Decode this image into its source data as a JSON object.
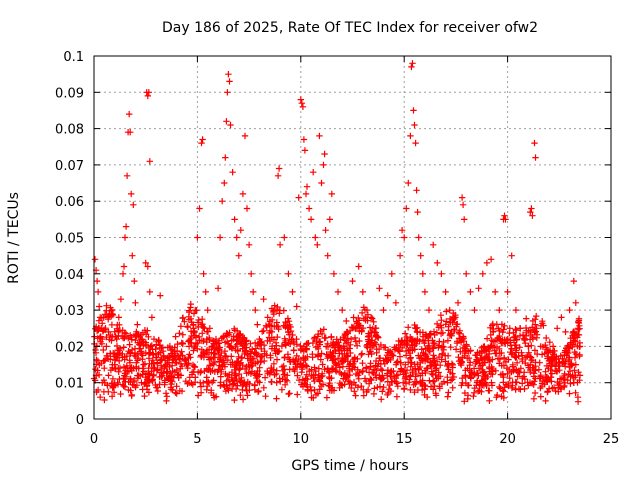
{
  "chart_data": {
    "type": "scatter",
    "title": "Day 186 of 2025, Rate Of TEC Index for receiver ofw2",
    "xlabel": "GPS time / hours",
    "ylabel": "ROTI / TECUs",
    "xlim": [
      0,
      25
    ],
    "ylim": [
      0,
      0.1
    ],
    "x_ticks": [
      "0",
      "5",
      "10",
      "15",
      "20",
      "25"
    ],
    "y_ticks": [
      "0",
      "0.01",
      "0.02",
      "0.03",
      "0.04",
      "0.05",
      "0.06",
      "0.07",
      "0.08",
      "0.09",
      "0.1"
    ],
    "grid": true,
    "marker": "plus",
    "series_color": "#ff0000",
    "series": [
      {
        "points": [
          [
            0.05,
            0.044
          ],
          [
            0.1,
            0.041
          ],
          [
            0.15,
            0.038
          ],
          [
            0.2,
            0.035
          ],
          [
            0.25,
            0.031
          ],
          [
            0.3,
            0.028
          ],
          [
            0.35,
            0.025
          ],
          [
            0.4,
            0.022
          ],
          [
            0.45,
            0.019
          ],
          [
            0.5,
            0.016
          ],
          [
            0.1,
            0.012
          ],
          [
            0.2,
            0.008
          ],
          [
            0.3,
            0.006
          ],
          [
            0.4,
            0.01
          ],
          [
            0.5,
            0.014
          ],
          [
            0.6,
            0.02
          ],
          [
            0.7,
            0.024
          ],
          [
            0.8,
            0.018
          ],
          [
            0.7,
            0.012
          ],
          [
            0.9,
            0.009
          ],
          [
            1.0,
            0.015
          ],
          [
            1.1,
            0.022
          ],
          [
            1.2,
            0.028
          ],
          [
            1.3,
            0.033
          ],
          [
            1.4,
            0.04
          ],
          [
            1.45,
            0.042
          ],
          [
            1.5,
            0.05
          ],
          [
            1.55,
            0.053
          ],
          [
            1.6,
            0.067
          ],
          [
            1.65,
            0.079
          ],
          [
            1.7,
            0.084
          ],
          [
            1.75,
            0.079
          ],
          [
            1.8,
            0.062
          ],
          [
            1.9,
            0.059
          ],
          [
            1.85,
            0.045
          ],
          [
            1.95,
            0.038
          ],
          [
            2.0,
            0.032
          ],
          [
            2.1,
            0.026
          ],
          [
            2.2,
            0.021
          ],
          [
            2.3,
            0.018
          ],
          [
            2.4,
            0.015
          ],
          [
            2.5,
            0.043
          ],
          [
            2.55,
            0.09
          ],
          [
            2.6,
            0.089
          ],
          [
            2.65,
            0.09
          ],
          [
            2.7,
            0.071
          ],
          [
            2.6,
            0.042
          ],
          [
            2.7,
            0.035
          ],
          [
            2.8,
            0.028
          ],
          [
            2.9,
            0.022
          ],
          [
            3.0,
            0.018
          ],
          [
            3.2,
            0.034
          ],
          [
            3.4,
            0.014
          ],
          [
            3.6,
            0.011
          ],
          [
            3.8,
            0.008
          ],
          [
            3.5,
            0.005
          ],
          [
            4.0,
            0.007
          ],
          [
            4.2,
            0.012
          ],
          [
            4.4,
            0.016
          ],
          [
            4.6,
            0.02
          ],
          [
            4.8,
            0.026
          ],
          [
            4.9,
            0.03
          ],
          [
            5.0,
            0.05
          ],
          [
            5.1,
            0.058
          ],
          [
            5.2,
            0.076
          ],
          [
            5.25,
            0.077
          ],
          [
            5.3,
            0.04
          ],
          [
            5.4,
            0.035
          ],
          [
            5.5,
            0.03
          ],
          [
            5.6,
            0.025
          ],
          [
            5.7,
            0.02
          ],
          [
            5.8,
            0.018
          ],
          [
            5.9,
            0.022
          ],
          [
            6.0,
            0.036
          ],
          [
            6.1,
            0.05
          ],
          [
            6.2,
            0.06
          ],
          [
            6.3,
            0.065
          ],
          [
            6.35,
            0.072
          ],
          [
            6.4,
            0.082
          ],
          [
            6.45,
            0.09
          ],
          [
            6.5,
            0.095
          ],
          [
            6.55,
            0.093
          ],
          [
            6.6,
            0.081
          ],
          [
            6.7,
            0.068
          ],
          [
            6.8,
            0.055
          ],
          [
            6.9,
            0.05
          ],
          [
            7.0,
            0.045
          ],
          [
            7.1,
            0.052
          ],
          [
            7.2,
            0.062
          ],
          [
            7.3,
            0.078
          ],
          [
            7.4,
            0.058
          ],
          [
            7.5,
            0.048
          ],
          [
            7.6,
            0.04
          ],
          [
            7.7,
            0.035
          ],
          [
            7.8,
            0.03
          ],
          [
            7.9,
            0.026
          ],
          [
            8.0,
            0.022
          ],
          [
            8.2,
            0.033
          ],
          [
            8.4,
            0.028
          ],
          [
            8.6,
            0.024
          ],
          [
            8.8,
            0.021
          ],
          [
            8.9,
            0.067
          ],
          [
            8.95,
            0.069
          ],
          [
            9.0,
            0.048
          ],
          [
            9.2,
            0.05
          ],
          [
            9.4,
            0.04
          ],
          [
            9.6,
            0.035
          ],
          [
            9.8,
            0.031
          ],
          [
            9.9,
            0.061
          ],
          [
            10.0,
            0.088
          ],
          [
            10.05,
            0.087
          ],
          [
            10.1,
            0.086
          ],
          [
            10.15,
            0.077
          ],
          [
            10.2,
            0.074
          ],
          [
            10.25,
            0.062
          ],
          [
            10.3,
            0.064
          ],
          [
            10.4,
            0.058
          ],
          [
            10.5,
            0.055
          ],
          [
            10.6,
            0.068
          ],
          [
            10.7,
            0.05
          ],
          [
            10.8,
            0.048
          ],
          [
            10.9,
            0.078
          ],
          [
            11.0,
            0.065
          ],
          [
            11.1,
            0.07
          ],
          [
            11.15,
            0.073
          ],
          [
            11.2,
            0.052
          ],
          [
            11.3,
            0.045
          ],
          [
            11.4,
            0.055
          ],
          [
            11.5,
            0.062
          ],
          [
            11.6,
            0.04
          ],
          [
            11.8,
            0.035
          ],
          [
            12.0,
            0.03
          ],
          [
            12.2,
            0.027
          ],
          [
            12.5,
            0.038
          ],
          [
            12.8,
            0.042
          ],
          [
            13.0,
            0.035
          ],
          [
            13.2,
            0.03
          ],
          [
            13.4,
            0.028
          ],
          [
            13.6,
            0.025
          ],
          [
            13.8,
            0.036
          ],
          [
            14.0,
            0.03
          ],
          [
            14.2,
            0.034
          ],
          [
            14.4,
            0.04
          ],
          [
            14.6,
            0.032
          ],
          [
            14.8,
            0.045
          ],
          [
            14.9,
            0.052
          ],
          [
            15.0,
            0.05
          ],
          [
            15.1,
            0.058
          ],
          [
            15.2,
            0.065
          ],
          [
            15.3,
            0.078
          ],
          [
            15.35,
            0.097
          ],
          [
            15.4,
            0.098
          ],
          [
            15.45,
            0.085
          ],
          [
            15.5,
            0.081
          ],
          [
            15.55,
            0.076
          ],
          [
            15.6,
            0.063
          ],
          [
            15.65,
            0.057
          ],
          [
            15.7,
            0.05
          ],
          [
            15.8,
            0.045
          ],
          [
            15.9,
            0.04
          ],
          [
            16.0,
            0.035
          ],
          [
            16.2,
            0.03
          ],
          [
            16.4,
            0.048
          ],
          [
            16.6,
            0.043
          ],
          [
            16.8,
            0.04
          ],
          [
            17.0,
            0.035
          ],
          [
            17.2,
            0.03
          ],
          [
            17.4,
            0.028
          ],
          [
            17.6,
            0.032
          ],
          [
            17.8,
            0.061
          ],
          [
            17.85,
            0.059
          ],
          [
            17.9,
            0.055
          ],
          [
            18.0,
            0.04
          ],
          [
            18.2,
            0.035
          ],
          [
            18.4,
            0.03
          ],
          [
            18.6,
            0.036
          ],
          [
            18.8,
            0.04
          ],
          [
            19.0,
            0.043
          ],
          [
            19.2,
            0.044
          ],
          [
            19.4,
            0.035
          ],
          [
            19.6,
            0.03
          ],
          [
            19.8,
            0.055
          ],
          [
            19.85,
            0.056
          ],
          [
            19.9,
            0.055
          ],
          [
            20.0,
            0.035
          ],
          [
            20.2,
            0.045
          ],
          [
            20.4,
            0.03
          ],
          [
            20.6,
            0.025
          ],
          [
            20.8,
            0.022
          ],
          [
            21.0,
            0.02
          ],
          [
            21.1,
            0.057
          ],
          [
            21.15,
            0.058
          ],
          [
            21.2,
            0.056
          ],
          [
            21.3,
            0.076
          ],
          [
            21.35,
            0.072
          ],
          [
            21.4,
            0.025
          ],
          [
            21.6,
            0.02
          ],
          [
            21.8,
            0.018
          ],
          [
            22.0,
            0.016
          ],
          [
            22.2,
            0.02
          ],
          [
            22.4,
            0.025
          ],
          [
            22.6,
            0.028
          ],
          [
            22.8,
            0.024
          ],
          [
            23.0,
            0.03
          ],
          [
            23.2,
            0.038
          ],
          [
            23.3,
            0.032
          ],
          [
            23.4,
            0.025
          ],
          [
            23.5,
            0.02
          ],
          [
            23.3,
            0.015
          ],
          [
            23.2,
            0.01
          ],
          [
            23.4,
            0.006
          ],
          [
            23.5,
            0.012
          ]
        ],
        "dense_band": {
          "x_start": 0.0,
          "x_end": 23.5,
          "y_floor_min": 0.004,
          "y_floor_max": 0.01,
          "y_ceiling_min": 0.018,
          "y_ceiling_max": 0.032,
          "density_per_hour": 90
        }
      }
    ]
  }
}
